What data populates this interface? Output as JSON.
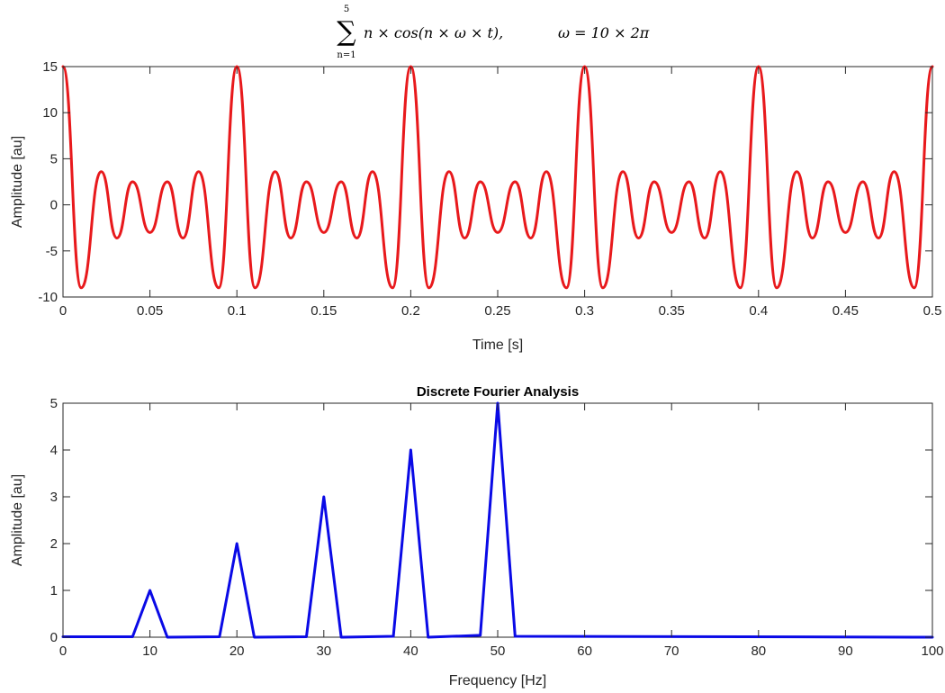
{
  "figure_title": {
    "sum_symbol": "∑",
    "sum_upper": "5",
    "sum_lower": "n=1",
    "expression": "n × cos(n × ω × t),",
    "omega_definition": "ω = 10 × 2π"
  },
  "chart_data": [
    {
      "type": "line",
      "title": "",
      "xlabel": "Time [s]",
      "ylabel": "Amplitude [au]",
      "xlim": [
        0,
        0.5
      ],
      "ylim": [
        -10,
        15
      ],
      "xticks": [
        0,
        0.05,
        0.1,
        0.15,
        0.2,
        0.25,
        0.3,
        0.35,
        0.4,
        0.45,
        0.5
      ],
      "xtick_labels": [
        "0",
        "0.05",
        "0.1",
        "0.15",
        "0.2",
        "0.25",
        "0.3",
        "0.35",
        "0.4",
        "0.45",
        "0.5"
      ],
      "yticks": [
        -10,
        -5,
        0,
        5,
        10,
        15
      ],
      "ytick_labels": [
        "-10",
        "-5",
        "0",
        "5",
        "10",
        "15"
      ],
      "grid": false,
      "series": [
        {
          "color": "#e8191c",
          "x": [
            0,
            0.0105,
            0.022,
            0.031,
            0.04,
            0.05,
            0.06,
            0.069,
            0.078,
            0.0895,
            0.1
          ],
          "y": [
            15,
            -9,
            3.6,
            -3.6,
            2.5,
            -3,
            2.5,
            -3.6,
            3.6,
            -9,
            15
          ]
        }
      ]
    },
    {
      "type": "line",
      "title": "Discrete Fourier Analysis",
      "xlabel": "Frequency [Hz]",
      "ylabel": "Amplitude [au]",
      "xlim": [
        0,
        100
      ],
      "ylim": [
        0,
        5
      ],
      "xticks": [
        0,
        10,
        20,
        30,
        40,
        50,
        60,
        70,
        80,
        90,
        100
      ],
      "xtick_labels": [
        "0",
        "10",
        "20",
        "30",
        "40",
        "50",
        "60",
        "70",
        "80",
        "90",
        "100"
      ],
      "yticks": [
        0,
        1,
        2,
        3,
        4,
        5
      ],
      "ytick_labels": [
        "0",
        "1",
        "2",
        "3",
        "4",
        "5"
      ],
      "grid": false,
      "series": [
        {
          "color": "#0a0ae6",
          "x": [
            0,
            8,
            10,
            12,
            18,
            20,
            22,
            28,
            30,
            32,
            38,
            40,
            42,
            48,
            50,
            52,
            100
          ],
          "y": [
            0.01,
            0.01,
            1,
            0,
            0.01,
            2,
            0,
            0.01,
            3,
            0,
            0.02,
            4,
            0,
            0.04,
            5,
            0.02,
            0
          ]
        }
      ]
    }
  ]
}
